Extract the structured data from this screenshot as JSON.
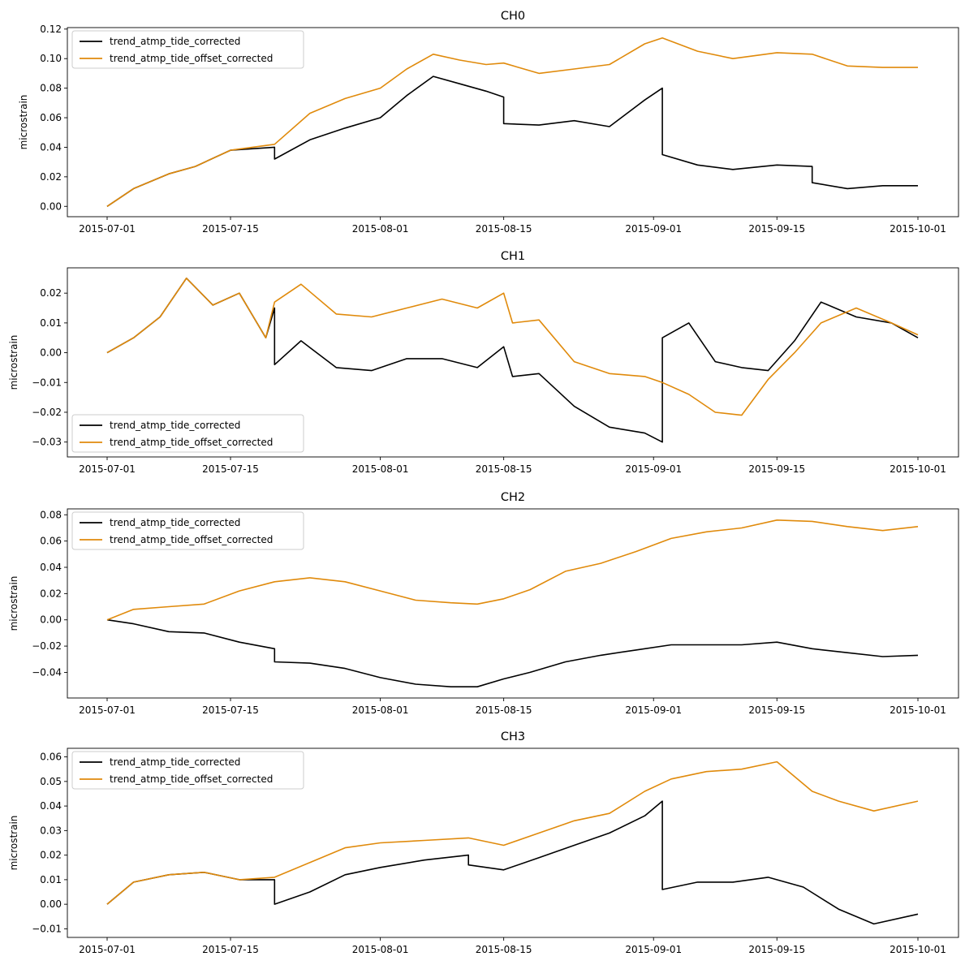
{
  "colors": {
    "corrected": "#000000",
    "offset_corrected": "#e08a0b",
    "axes": "#000000",
    "legend_border": "#cccccc"
  },
  "chart_data": [
    {
      "type": "line",
      "title": "CH0",
      "ylabel": "microstrain",
      "xlabel": "",
      "xlim": [
        "2015-07-01",
        "2015-10-01"
      ],
      "ylim": [
        -0.007,
        0.121
      ],
      "yticks": [
        0.0,
        0.02,
        0.04,
        0.06,
        0.08,
        0.1,
        0.12
      ],
      "ytick_labels": [
        "0.00",
        "0.02",
        "0.04",
        "0.06",
        "0.08",
        "0.10",
        "0.12"
      ],
      "xticks": [
        "2015-07-01",
        "2015-07-15",
        "2015-08-01",
        "2015-08-15",
        "2015-09-01",
        "2015-09-15",
        "2015-10-01"
      ],
      "xtick_labels": [
        "2015-07-01",
        "2015-07-15",
        "2015-08-01",
        "2015-08-15",
        "2015-09-01",
        "2015-09-15",
        "2015-10-01"
      ],
      "legend": "upper left",
      "series": [
        {
          "name": "trend_atmp_tide_corrected",
          "color": "#000000",
          "x": [
            "2015-07-01",
            "2015-07-04",
            "2015-07-08",
            "2015-07-11",
            "2015-07-15",
            "2015-07-20",
            "2015-07-20",
            "2015-07-24",
            "2015-07-28",
            "2015-08-01",
            "2015-08-04",
            "2015-08-07",
            "2015-08-10",
            "2015-08-13",
            "2015-08-15",
            "2015-08-15",
            "2015-08-19",
            "2015-08-23",
            "2015-08-27",
            "2015-08-31",
            "2015-09-02",
            "2015-09-02",
            "2015-09-06",
            "2015-09-10",
            "2015-09-15",
            "2015-09-19",
            "2015-09-19",
            "2015-09-23",
            "2015-09-27",
            "2015-10-01"
          ],
          "y": [
            0.0,
            0.012,
            0.022,
            0.027,
            0.038,
            0.04,
            0.032,
            0.045,
            0.053,
            0.06,
            0.075,
            0.088,
            0.083,
            0.078,
            0.074,
            0.056,
            0.055,
            0.058,
            0.054,
            0.072,
            0.08,
            0.035,
            0.028,
            0.025,
            0.028,
            0.027,
            0.016,
            0.012,
            0.014,
            0.014
          ]
        },
        {
          "name": "trend_atmp_tide_offset_corrected",
          "color": "#e08a0b",
          "x": [
            "2015-07-01",
            "2015-07-04",
            "2015-07-08",
            "2015-07-11",
            "2015-07-15",
            "2015-07-20",
            "2015-07-24",
            "2015-07-28",
            "2015-08-01",
            "2015-08-04",
            "2015-08-07",
            "2015-08-10",
            "2015-08-13",
            "2015-08-15",
            "2015-08-19",
            "2015-08-23",
            "2015-08-27",
            "2015-08-31",
            "2015-09-02",
            "2015-09-06",
            "2015-09-10",
            "2015-09-15",
            "2015-09-19",
            "2015-09-23",
            "2015-09-27",
            "2015-10-01"
          ],
          "y": [
            0.0,
            0.012,
            0.022,
            0.027,
            0.038,
            0.042,
            0.063,
            0.073,
            0.08,
            0.093,
            0.103,
            0.099,
            0.096,
            0.097,
            0.09,
            0.093,
            0.096,
            0.11,
            0.114,
            0.105,
            0.1,
            0.104,
            0.103,
            0.095,
            0.094,
            0.094
          ]
        }
      ]
    },
    {
      "type": "line",
      "title": "CH1",
      "ylabel": "microstrain",
      "xlabel": "",
      "xlim": [
        "2015-07-01",
        "2015-10-01"
      ],
      "ylim": [
        -0.035,
        0.0285
      ],
      "yticks": [
        -0.03,
        -0.02,
        -0.01,
        0.0,
        0.01,
        0.02
      ],
      "ytick_labels": [
        "−0.03",
        "−0.02",
        "−0.01",
        "0.00",
        "0.01",
        "0.02"
      ],
      "xticks": [
        "2015-07-01",
        "2015-07-15",
        "2015-08-01",
        "2015-08-15",
        "2015-09-01",
        "2015-09-15",
        "2015-10-01"
      ],
      "xtick_labels": [
        "2015-07-01",
        "2015-07-15",
        "2015-08-01",
        "2015-08-15",
        "2015-09-01",
        "2015-09-15",
        "2015-10-01"
      ],
      "legend": "lower left",
      "series": [
        {
          "name": "trend_atmp_tide_corrected",
          "color": "#000000",
          "x": [
            "2015-07-01",
            "2015-07-04",
            "2015-07-07",
            "2015-07-10",
            "2015-07-13",
            "2015-07-16",
            "2015-07-19",
            "2015-07-20",
            "2015-07-20",
            "2015-07-23",
            "2015-07-27",
            "2015-07-31",
            "2015-08-04",
            "2015-08-08",
            "2015-08-12",
            "2015-08-15",
            "2015-08-16",
            "2015-08-19",
            "2015-08-23",
            "2015-08-27",
            "2015-08-31",
            "2015-09-02",
            "2015-09-02",
            "2015-09-05",
            "2015-09-08",
            "2015-09-11",
            "2015-09-14",
            "2015-09-17",
            "2015-09-20",
            "2015-09-24",
            "2015-09-28",
            "2015-10-01"
          ],
          "y": [
            0.0,
            0.005,
            0.012,
            0.025,
            0.016,
            0.02,
            0.005,
            0.015,
            -0.004,
            0.004,
            -0.005,
            -0.006,
            -0.002,
            -0.002,
            -0.005,
            0.002,
            -0.008,
            -0.007,
            -0.018,
            -0.025,
            -0.027,
            -0.03,
            0.005,
            0.01,
            -0.003,
            -0.005,
            -0.006,
            0.004,
            0.017,
            0.012,
            0.01,
            0.005
          ]
        },
        {
          "name": "trend_atmp_tide_offset_corrected",
          "color": "#e08a0b",
          "x": [
            "2015-07-01",
            "2015-07-04",
            "2015-07-07",
            "2015-07-10",
            "2015-07-13",
            "2015-07-16",
            "2015-07-19",
            "2015-07-20",
            "2015-07-23",
            "2015-07-27",
            "2015-07-31",
            "2015-08-04",
            "2015-08-08",
            "2015-08-12",
            "2015-08-15",
            "2015-08-16",
            "2015-08-19",
            "2015-08-23",
            "2015-08-27",
            "2015-08-31",
            "2015-09-02",
            "2015-09-05",
            "2015-09-08",
            "2015-09-11",
            "2015-09-14",
            "2015-09-17",
            "2015-09-20",
            "2015-09-24",
            "2015-09-28",
            "2015-10-01"
          ],
          "y": [
            0.0,
            0.005,
            0.012,
            0.025,
            0.016,
            0.02,
            0.005,
            0.017,
            0.023,
            0.013,
            0.012,
            0.015,
            0.018,
            0.015,
            0.02,
            0.01,
            0.011,
            -0.003,
            -0.007,
            -0.008,
            -0.01,
            -0.014,
            -0.02,
            -0.021,
            -0.009,
            0.0,
            0.01,
            0.015,
            0.01,
            0.006
          ]
        }
      ]
    },
    {
      "type": "line",
      "title": "CH2",
      "ylabel": "microstrain",
      "xlabel": "",
      "xlim": [
        "2015-07-01",
        "2015-10-01"
      ],
      "ylim": [
        -0.0595,
        0.0845
      ],
      "yticks": [
        -0.04,
        -0.02,
        0.0,
        0.02,
        0.04,
        0.06,
        0.08
      ],
      "ytick_labels": [
        "−0.04",
        "−0.02",
        "0.00",
        "0.02",
        "0.04",
        "0.06",
        "0.08"
      ],
      "xticks": [
        "2015-07-01",
        "2015-07-15",
        "2015-08-01",
        "2015-08-15",
        "2015-09-01",
        "2015-09-15",
        "2015-10-01"
      ],
      "xtick_labels": [
        "2015-07-01",
        "2015-07-15",
        "2015-08-01",
        "2015-08-15",
        "2015-09-01",
        "2015-09-15",
        "2015-10-01"
      ],
      "legend": "upper left",
      "series": [
        {
          "name": "trend_atmp_tide_corrected",
          "color": "#000000",
          "x": [
            "2015-07-01",
            "2015-07-04",
            "2015-07-08",
            "2015-07-12",
            "2015-07-16",
            "2015-07-20",
            "2015-07-20",
            "2015-07-24",
            "2015-07-28",
            "2015-08-01",
            "2015-08-05",
            "2015-08-09",
            "2015-08-12",
            "2015-08-15",
            "2015-08-18",
            "2015-08-22",
            "2015-08-26",
            "2015-08-30",
            "2015-09-03",
            "2015-09-07",
            "2015-09-11",
            "2015-09-15",
            "2015-09-19",
            "2015-09-23",
            "2015-09-27",
            "2015-10-01"
          ],
          "y": [
            0.0,
            -0.003,
            -0.009,
            -0.01,
            -0.017,
            -0.022,
            -0.032,
            -0.033,
            -0.037,
            -0.044,
            -0.049,
            -0.051,
            -0.051,
            -0.045,
            -0.04,
            -0.032,
            -0.027,
            -0.023,
            -0.019,
            -0.019,
            -0.019,
            -0.017,
            -0.022,
            -0.025,
            -0.028,
            -0.027
          ]
        },
        {
          "name": "trend_atmp_tide_offset_corrected",
          "color": "#e08a0b",
          "x": [
            "2015-07-01",
            "2015-07-04",
            "2015-07-08",
            "2015-07-12",
            "2015-07-16",
            "2015-07-20",
            "2015-07-24",
            "2015-07-28",
            "2015-08-01",
            "2015-08-05",
            "2015-08-09",
            "2015-08-12",
            "2015-08-15",
            "2015-08-18",
            "2015-08-22",
            "2015-08-26",
            "2015-08-30",
            "2015-09-03",
            "2015-09-07",
            "2015-09-11",
            "2015-09-15",
            "2015-09-19",
            "2015-09-23",
            "2015-09-27",
            "2015-10-01"
          ],
          "y": [
            0.0,
            0.008,
            0.01,
            0.012,
            0.022,
            0.029,
            0.032,
            0.029,
            0.022,
            0.015,
            0.013,
            0.012,
            0.016,
            0.023,
            0.037,
            0.043,
            0.052,
            0.062,
            0.067,
            0.07,
            0.076,
            0.075,
            0.071,
            0.068,
            0.071
          ]
        }
      ]
    },
    {
      "type": "line",
      "title": "CH3",
      "ylabel": "microstrain",
      "xlabel": "",
      "xlim": [
        "2015-07-01",
        "2015-10-01"
      ],
      "ylim": [
        -0.0135,
        0.0635
      ],
      "yticks": [
        -0.01,
        0.0,
        0.01,
        0.02,
        0.03,
        0.04,
        0.05,
        0.06
      ],
      "ytick_labels": [
        "−0.01",
        "0.00",
        "0.01",
        "0.02",
        "0.03",
        "0.04",
        "0.05",
        "0.06"
      ],
      "xticks": [
        "2015-07-01",
        "2015-07-15",
        "2015-08-01",
        "2015-08-15",
        "2015-09-01",
        "2015-09-15",
        "2015-10-01"
      ],
      "xtick_labels": [
        "2015-07-01",
        "2015-07-15",
        "2015-08-01",
        "2015-08-15",
        "2015-09-01",
        "2015-09-15",
        "2015-10-01"
      ],
      "legend": "upper left",
      "series": [
        {
          "name": "trend_atmp_tide_corrected",
          "color": "#000000",
          "x": [
            "2015-07-01",
            "2015-07-04",
            "2015-07-08",
            "2015-07-12",
            "2015-07-16",
            "2015-07-20",
            "2015-07-20",
            "2015-07-24",
            "2015-07-28",
            "2015-08-01",
            "2015-08-06",
            "2015-08-11",
            "2015-08-11",
            "2015-08-15",
            "2015-08-19",
            "2015-08-23",
            "2015-08-27",
            "2015-08-31",
            "2015-09-02",
            "2015-09-02",
            "2015-09-06",
            "2015-09-10",
            "2015-09-14",
            "2015-09-18",
            "2015-09-22",
            "2015-09-26",
            "2015-10-01"
          ],
          "y": [
            0.0,
            0.009,
            0.012,
            0.013,
            0.01,
            0.01,
            0.0,
            0.005,
            0.012,
            0.015,
            0.018,
            0.02,
            0.016,
            0.014,
            0.019,
            0.024,
            0.029,
            0.036,
            0.042,
            0.006,
            0.009,
            0.009,
            0.011,
            0.007,
            -0.002,
            -0.008,
            -0.004
          ]
        },
        {
          "name": "trend_atmp_tide_offset_corrected",
          "color": "#e08a0b",
          "x": [
            "2015-07-01",
            "2015-07-04",
            "2015-07-08",
            "2015-07-12",
            "2015-07-16",
            "2015-07-20",
            "2015-07-24",
            "2015-07-28",
            "2015-08-01",
            "2015-08-06",
            "2015-08-11",
            "2015-08-15",
            "2015-08-19",
            "2015-08-23",
            "2015-08-27",
            "2015-08-31",
            "2015-09-03",
            "2015-09-07",
            "2015-09-11",
            "2015-09-15",
            "2015-09-19",
            "2015-09-22",
            "2015-09-26",
            "2015-10-01"
          ],
          "y": [
            0.0,
            0.009,
            0.012,
            0.013,
            0.01,
            0.011,
            0.017,
            0.023,
            0.025,
            0.026,
            0.027,
            0.024,
            0.029,
            0.034,
            0.037,
            0.046,
            0.051,
            0.054,
            0.055,
            0.058,
            0.046,
            0.042,
            0.038,
            0.042
          ]
        }
      ]
    }
  ]
}
